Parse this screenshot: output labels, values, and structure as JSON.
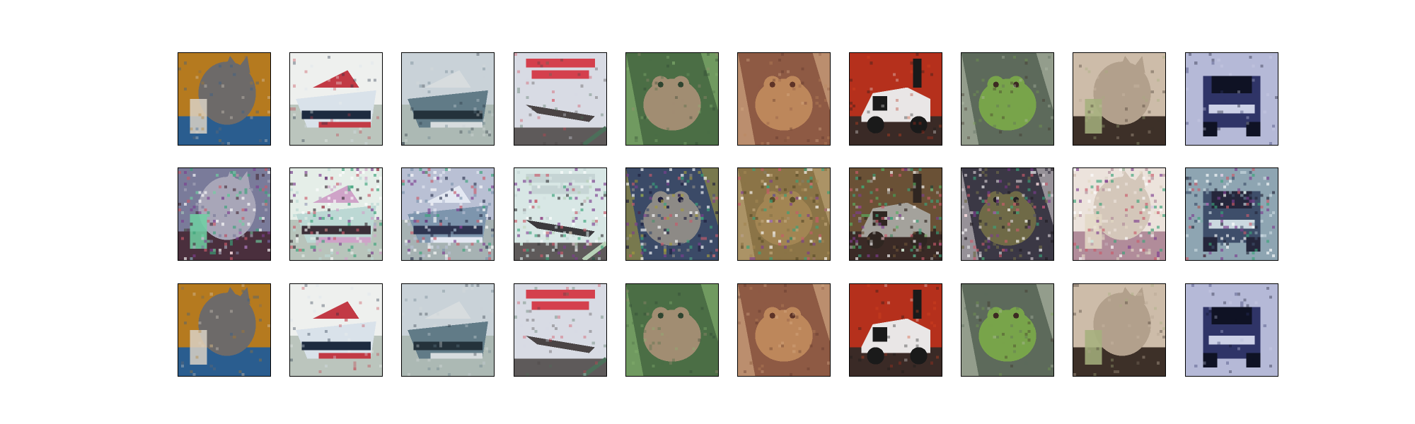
{
  "figure": {
    "rows": [
      {
        "role": "original",
        "images": [
          {
            "subject": "cat",
            "palette": {
              "bg": "#b57a1f",
              "main": "#6d6a69",
              "accent": "#2a5d8f",
              "detail": "#d9d1c6"
            }
          },
          {
            "subject": "ship",
            "palette": {
              "bg": "#eef0ee",
              "main": "#d9e2ea",
              "accent": "#1d2b3f",
              "detail": "#c23a45"
            }
          },
          {
            "subject": "ship",
            "palette": {
              "bg": "#c9d2d8",
              "main": "#617b87",
              "accent": "#24323b",
              "detail": "#d7dcde"
            }
          },
          {
            "subject": "airplane-poster",
            "palette": {
              "bg": "#d8dbe4",
              "main": "#d4404d",
              "accent": "#4a4445",
              "detail": "#4c6f5a"
            }
          },
          {
            "subject": "frog",
            "palette": {
              "bg": "#4b6e45",
              "main": "#a18d72",
              "accent": "#2f4530",
              "detail": "#89b873"
            }
          },
          {
            "subject": "frog",
            "palette": {
              "bg": "#8e5a44",
              "main": "#bd875b",
              "accent": "#5d3327",
              "detail": "#d9b08a"
            }
          },
          {
            "subject": "car",
            "palette": {
              "bg": "#b5301c",
              "main": "#e9e6e6",
              "accent": "#1a1a1a",
              "detail": "#d7461f"
            }
          },
          {
            "subject": "frog",
            "palette": {
              "bg": "#5d6a5b",
              "main": "#78a44a",
              "accent": "#3d2a22",
              "detail": "#b8c0ad"
            }
          },
          {
            "subject": "cat",
            "palette": {
              "bg": "#cdbca9",
              "main": "#b2a08c",
              "accent": "#3d3028",
              "detail": "#a4b07c"
            }
          },
          {
            "subject": "truck",
            "palette": {
              "bg": "#b5b9d7",
              "main": "#2f3467",
              "accent": "#0f1224",
              "detail": "#cdd1e7"
            }
          }
        ]
      },
      {
        "role": "reconstruction",
        "images": [
          {
            "subject": "noisy-cat",
            "palette": {
              "bg": "#7a7b9a",
              "main": "#a8a6b8",
              "accent": "#4a2f3d",
              "detail": "#6fd1a2"
            }
          },
          {
            "subject": "noisy-ship",
            "palette": {
              "bg": "#e5eee8",
              "main": "#bcd8d4",
              "accent": "#3b2f38",
              "detail": "#cfa3c8"
            }
          },
          {
            "subject": "noisy-ship",
            "palette": {
              "bg": "#b9c0d4",
              "main": "#7d95ad",
              "accent": "#2e3551",
              "detail": "#e3e8f2"
            }
          },
          {
            "subject": "noisy-plane",
            "palette": {
              "bg": "#d8e7e5",
              "main": "#c5d4d4",
              "accent": "#3b3a3d",
              "detail": "#b7d1b7"
            }
          },
          {
            "subject": "noisy-frog",
            "palette": {
              "bg": "#3b4a67",
              "main": "#8d8a86",
              "accent": "#1f1f3d",
              "detail": "#a19a3e"
            }
          },
          {
            "subject": "noisy-frog",
            "palette": {
              "bg": "#8b7447",
              "main": "#a28553",
              "accent": "#5a4d29",
              "detail": "#c1a87b"
            }
          },
          {
            "subject": "noisy-car",
            "palette": {
              "bg": "#6a5136",
              "main": "#a4a29c",
              "accent": "#2f2621",
              "detail": "#58b061"
            }
          },
          {
            "subject": "noisy-frog",
            "palette": {
              "bg": "#3b3845",
              "main": "#6f6a47",
              "accent": "#241e25",
              "detail": "#d4cdd1"
            }
          },
          {
            "subject": "noisy-cat",
            "palette": {
              "bg": "#ece3dc",
              "main": "#d4c7ba",
              "accent": "#b18c9a",
              "detail": "#e3d8c5"
            }
          },
          {
            "subject": "noisy-truck",
            "palette": {
              "bg": "#8ea5b2",
              "main": "#3e4e6a",
              "accent": "#25263b",
              "detail": "#cbd9e0"
            }
          }
        ]
      },
      {
        "role": "original-repeat",
        "images": [
          {
            "subject": "cat",
            "palette": {
              "bg": "#b57a1f",
              "main": "#6d6a69",
              "accent": "#2a5d8f",
              "detail": "#d9d1c6"
            }
          },
          {
            "subject": "ship",
            "palette": {
              "bg": "#eef0ee",
              "main": "#d9e2ea",
              "accent": "#1d2b3f",
              "detail": "#c23a45"
            }
          },
          {
            "subject": "ship",
            "palette": {
              "bg": "#c9d2d8",
              "main": "#617b87",
              "accent": "#24323b",
              "detail": "#d7dcde"
            }
          },
          {
            "subject": "airplane-poster",
            "palette": {
              "bg": "#d8dbe4",
              "main": "#d4404d",
              "accent": "#4a4445",
              "detail": "#4c6f5a"
            }
          },
          {
            "subject": "frog",
            "palette": {
              "bg": "#4b6e45",
              "main": "#a18d72",
              "accent": "#2f4530",
              "detail": "#89b873"
            }
          },
          {
            "subject": "frog",
            "palette": {
              "bg": "#8e5a44",
              "main": "#bd875b",
              "accent": "#5d3327",
              "detail": "#d9b08a"
            }
          },
          {
            "subject": "car",
            "palette": {
              "bg": "#b5301c",
              "main": "#e9e6e6",
              "accent": "#1a1a1a",
              "detail": "#d7461f"
            }
          },
          {
            "subject": "frog",
            "palette": {
              "bg": "#5d6a5b",
              "main": "#78a44a",
              "accent": "#3d2a22",
              "detail": "#b8c0ad"
            }
          },
          {
            "subject": "cat",
            "palette": {
              "bg": "#cdbca9",
              "main": "#b2a08c",
              "accent": "#3d3028",
              "detail": "#a4b07c"
            }
          },
          {
            "subject": "truck",
            "palette": {
              "bg": "#b5b9d7",
              "main": "#2f3467",
              "accent": "#0f1224",
              "detail": "#cdd1e7"
            }
          }
        ]
      }
    ]
  }
}
